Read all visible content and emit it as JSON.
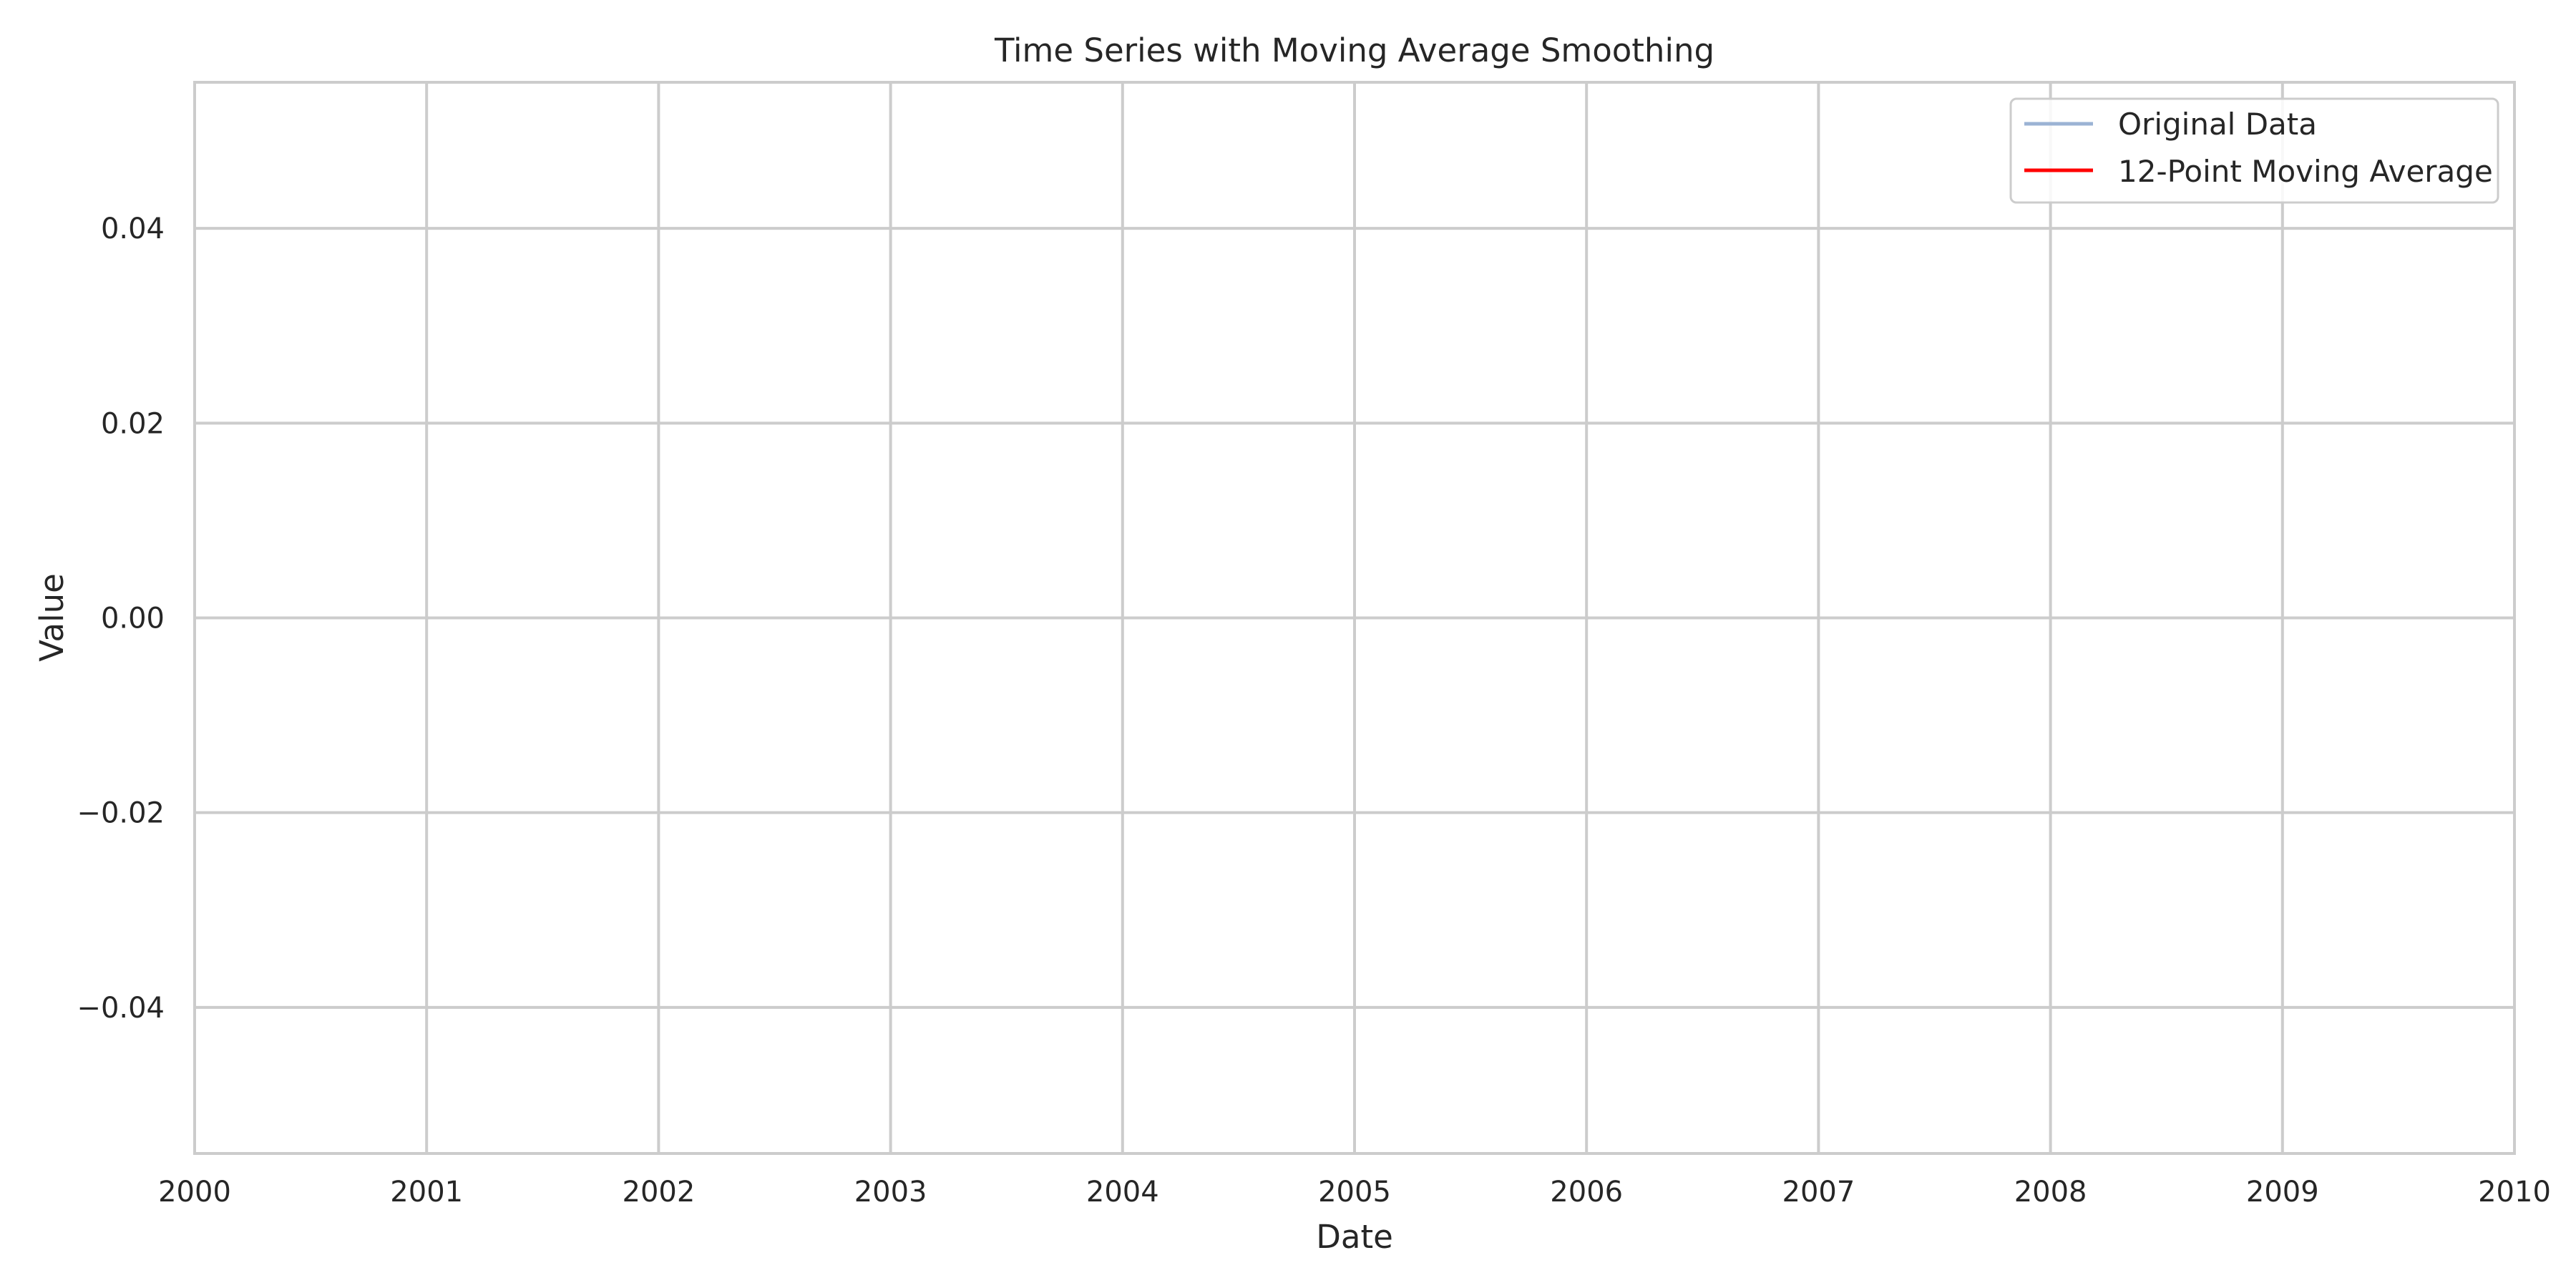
{
  "chart_data": {
    "type": "line",
    "title": "Time Series with Moving Average Smoothing",
    "xlabel": "Date",
    "ylabel": "Value",
    "x_ticks": [
      "2000",
      "2001",
      "2002",
      "2003",
      "2004",
      "2005",
      "2006",
      "2007",
      "2008",
      "2009",
      "2010"
    ],
    "y_ticks": [
      "−0.04",
      "−0.02",
      "0.00",
      "0.02",
      "0.04"
    ],
    "y_tick_values": [
      -0.04,
      -0.02,
      0.0,
      0.02,
      0.04
    ],
    "xlim": [
      "2000",
      "2010"
    ],
    "ylim": [
      -0.055,
      0.055
    ],
    "grid": true,
    "legend_position": "top-right",
    "series": [
      {
        "name": "Original Data",
        "color": "#9bb3d4",
        "values": []
      },
      {
        "name": "12-Point Moving Average",
        "color": "#ff0000",
        "values": []
      }
    ]
  }
}
